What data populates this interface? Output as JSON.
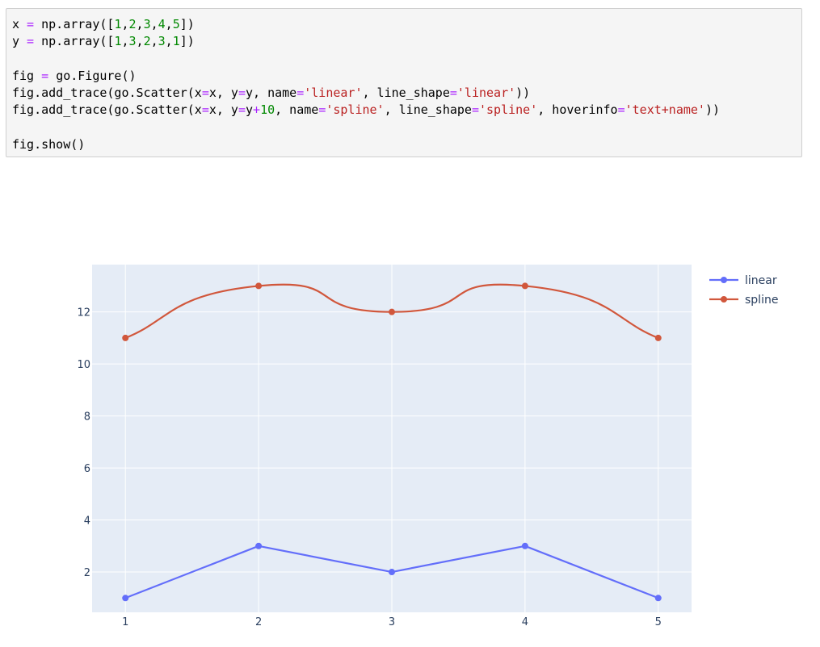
{
  "code_cell": {
    "lines": [
      [
        [
          "x"
        ],
        [
          " = ",
          "op"
        ],
        [
          "np.array([",
          ""
        ],
        [
          "1",
          "num"
        ],
        [
          ",",
          ""
        ],
        [
          "2",
          "num"
        ],
        [
          ",",
          ""
        ],
        [
          "3",
          "num"
        ],
        [
          ",",
          ""
        ],
        [
          "4",
          "num"
        ],
        [
          ",",
          ""
        ],
        [
          "5",
          "num"
        ],
        [
          "])",
          ""
        ]
      ],
      [
        [
          "y"
        ],
        [
          " = ",
          "op"
        ],
        [
          "np.array([",
          ""
        ],
        [
          "1",
          "num"
        ],
        [
          ",",
          ""
        ],
        [
          "3",
          "num"
        ],
        [
          ",",
          ""
        ],
        [
          "2",
          "num"
        ],
        [
          ",",
          ""
        ],
        [
          "3",
          "num"
        ],
        [
          ",",
          ""
        ],
        [
          "1",
          "num"
        ],
        [
          "])",
          ""
        ]
      ],
      [],
      [
        [
          "fig"
        ],
        [
          " = ",
          "op"
        ],
        [
          "go.Figure()",
          ""
        ]
      ],
      [
        [
          "fig.add_trace(go.Scatter(x",
          ""
        ],
        [
          "=",
          "op"
        ],
        [
          "x, y",
          ""
        ],
        [
          "=",
          "op"
        ],
        [
          "y, name",
          ""
        ],
        [
          "=",
          "op"
        ],
        [
          "'linear'",
          "str"
        ],
        [
          ", line_shape",
          ""
        ],
        [
          "=",
          "op"
        ],
        [
          "'linear'",
          "str"
        ],
        [
          "))",
          ""
        ]
      ],
      [
        [
          "fig.add_trace(go.Scatter(x",
          ""
        ],
        [
          "=",
          "op"
        ],
        [
          "x, y",
          ""
        ],
        [
          "=",
          "op"
        ],
        [
          "y",
          ""
        ],
        [
          "+",
          "op"
        ],
        [
          "10",
          "num"
        ],
        [
          ", name",
          ""
        ],
        [
          "=",
          "op"
        ],
        [
          "'spline'",
          "str"
        ],
        [
          ", line_shape",
          ""
        ],
        [
          "=",
          "op"
        ],
        [
          "'spline'",
          "str"
        ],
        [
          ", hoverinfo",
          ""
        ],
        [
          "=",
          "op"
        ],
        [
          "'text+name'",
          "str"
        ],
        [
          "))",
          ""
        ]
      ],
      [],
      [
        [
          "fig.show()",
          ""
        ]
      ]
    ]
  },
  "colors": {
    "plot_bg": "#e5ecf6",
    "grid": "#ffffff",
    "tick_text": "#2a3f5f",
    "linear": "#636efa",
    "spline": "#EF553B"
  },
  "chart_data": {
    "type": "line",
    "x": [
      1,
      2,
      3,
      4,
      5
    ],
    "series": [
      {
        "name": "linear",
        "values": [
          1,
          3,
          2,
          3,
          1
        ],
        "color": "#636efa",
        "line_shape": "linear"
      },
      {
        "name": "spline",
        "values": [
          11,
          13,
          12,
          13,
          11
        ],
        "color": "#d1573c",
        "line_shape": "spline"
      }
    ],
    "x_ticks": [
      1,
      2,
      3,
      4,
      5
    ],
    "y_ticks": [
      2,
      4,
      6,
      8,
      10,
      12
    ],
    "xlim": [
      0.75,
      5.25
    ],
    "ylim": [
      0.45,
      13.82
    ],
    "grid": true,
    "legend_position": "top-right",
    "title": "",
    "xlabel": "",
    "ylabel": ""
  }
}
